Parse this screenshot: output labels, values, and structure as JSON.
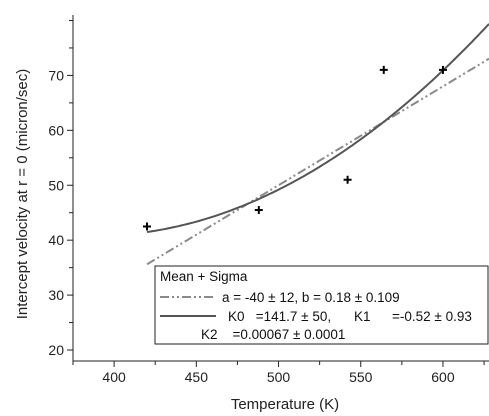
{
  "chart_data": {
    "type": "scatter",
    "xlabel": "Temperature (K)",
    "ylabel": "Intercept velocity at r = 0 (micron/sec)",
    "xlim": [
      375,
      628
    ],
    "ylim": [
      18,
      81
    ],
    "xticks": [
      400,
      450,
      500,
      550,
      600
    ],
    "yticks": [
      20,
      30,
      40,
      50,
      60,
      70
    ],
    "points": [
      {
        "x": 420,
        "y": 42.5
      },
      {
        "x": 488,
        "y": 45.5
      },
      {
        "x": 542,
        "y": 51
      },
      {
        "x": 564,
        "y": 71
      },
      {
        "x": 600,
        "y": 71
      }
    ],
    "fits": [
      {
        "kind": "linear",
        "a": -40,
        "b": 0.18,
        "x_range": [
          420,
          628
        ],
        "style": "dash-dot-dot",
        "color": "#8a8a8a"
      },
      {
        "kind": "quadratic",
        "k0": 141.7,
        "k1": -0.52,
        "k2": 0.00067,
        "x_range": [
          420,
          628
        ],
        "style": "solid",
        "color": "#555555"
      }
    ],
    "legend": {
      "title": "Mean + Sigma",
      "entries": [
        {
          "text": "a = -40 ± 12, b = 0.18 ± 0.109"
        },
        {
          "text_parts": [
            "K0   =141.7 ± 50,",
            "K1",
            "=-0.52 ± 0.93"
          ]
        },
        {
          "text": "K2    =0.00067 ± 0.0001"
        }
      ],
      "placement": "bottom-right"
    },
    "grid": false
  }
}
